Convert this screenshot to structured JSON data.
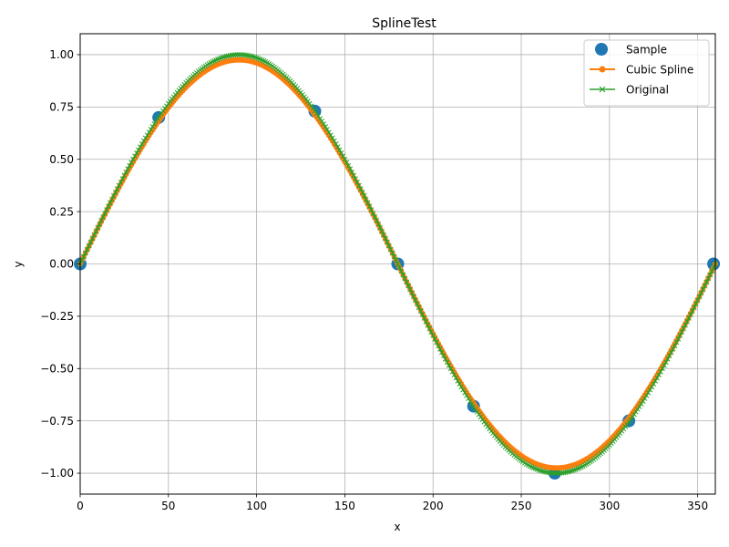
{
  "chart_data": {
    "type": "line",
    "title": "SplineTest",
    "xlabel": "x",
    "ylabel": "y",
    "xlim": [
      0,
      360
    ],
    "ylim": [
      -1.1,
      1.1
    ],
    "xticks": [
      0,
      50,
      100,
      150,
      200,
      250,
      300,
      350
    ],
    "yticks": [
      -1.0,
      -0.75,
      -0.5,
      -0.25,
      0.0,
      0.25,
      0.5,
      0.75,
      1.0
    ],
    "xtick_labels": [
      "0",
      "50",
      "100",
      "150",
      "200",
      "250",
      "300",
      "350"
    ],
    "ytick_labels": [
      "−1.00",
      "−0.75",
      "−0.50",
      "−0.25",
      "0.00",
      "0.25",
      "0.50",
      "0.75",
      "1.00"
    ],
    "grid": true,
    "legend_position": "top-right",
    "series": [
      {
        "name": "Sample",
        "kind": "scatter",
        "marker": "circle",
        "color": "#1f77b4",
        "x": [
          0,
          44.5,
          133,
          180,
          223,
          269,
          311,
          359
        ],
        "y": [
          0.0,
          0.7,
          0.73,
          0.0,
          -0.68,
          -1.0,
          -0.75,
          0.0
        ]
      },
      {
        "name": "Cubic Spline",
        "kind": "line",
        "marker": "circle",
        "color": "#ff7f0e",
        "function": "spline of sample points"
      },
      {
        "name": "Original",
        "kind": "line",
        "marker": "x",
        "color": "#2ca02c",
        "function": "sin(x degrees)"
      }
    ]
  }
}
